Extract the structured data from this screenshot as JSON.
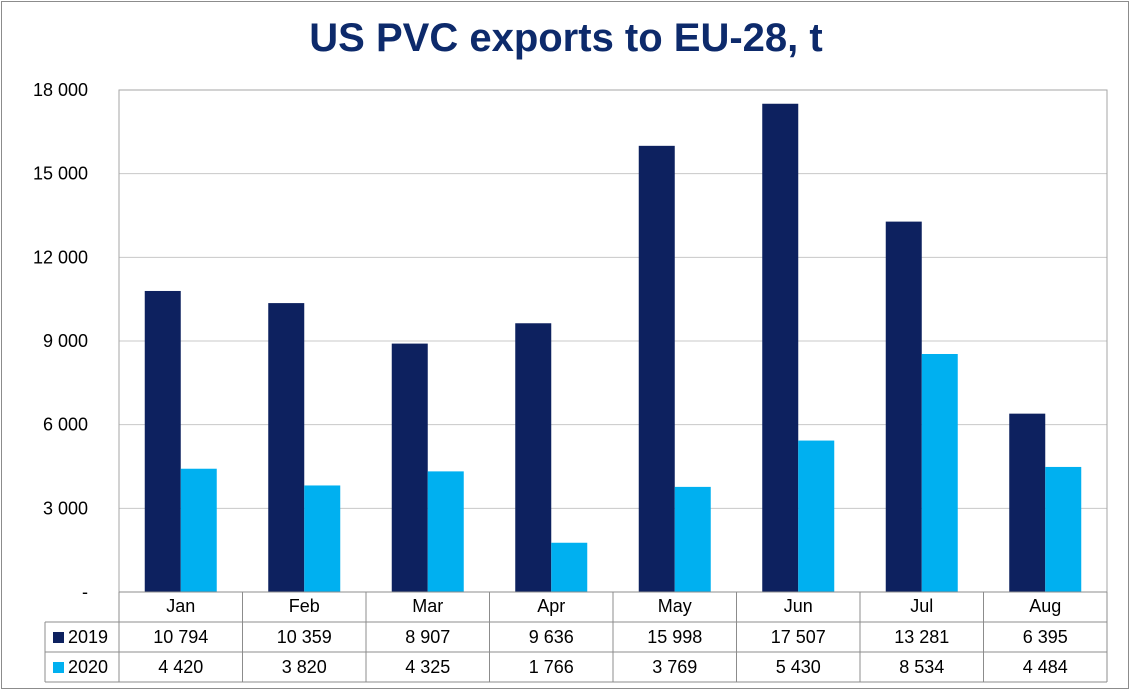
{
  "chart_data": {
    "type": "bar",
    "title": "US PVC exports to EU-28, t",
    "categories": [
      "Jan",
      "Feb",
      "Mar",
      "Apr",
      "May",
      "Jun",
      "Jul",
      "Aug"
    ],
    "series": [
      {
        "name": "2019",
        "color": "#0d215f",
        "values": [
          10794,
          10359,
          8907,
          9636,
          15998,
          17507,
          13281,
          6395
        ],
        "labels": [
          "10 794",
          "10 359",
          "8 907",
          "9 636",
          "15 998",
          "17 507",
          "13 281",
          "6 395"
        ]
      },
      {
        "name": "2020",
        "color": "#00b0f0",
        "values": [
          4420,
          3820,
          4325,
          1766,
          3769,
          5430,
          8534,
          4484
        ],
        "labels": [
          "4 420",
          "3 820",
          "4 325",
          "1 766",
          "3 769",
          "5 430",
          "8 534",
          "4 484"
        ]
      }
    ],
    "ylim": [
      0,
      18000
    ],
    "yticks": [
      0,
      3000,
      6000,
      9000,
      12000,
      15000,
      18000
    ],
    "ytick_labels": [
      "-",
      "3 000",
      "6 000",
      "9 000",
      "12 000",
      "15 000",
      "18 000"
    ],
    "grid": true,
    "data_table": true,
    "legend": "data-table"
  }
}
